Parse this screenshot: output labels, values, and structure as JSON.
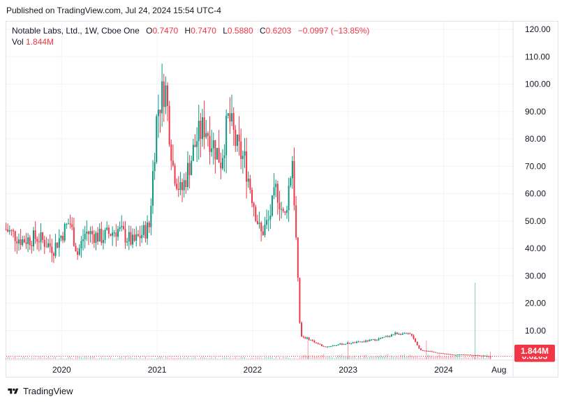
{
  "header": {
    "published": "Published on TradingView.com, Jul 24, 2024 15:54 UTC-4"
  },
  "legend": {
    "symbol": "Notable Labs, Ltd., 1W, Cboe One",
    "open_label": "O",
    "open": "0.7470",
    "high_label": "H",
    "high": "0.7470",
    "low_label": "L",
    "low": "0.5880",
    "close_label": "C",
    "close": "0.6203",
    "change": "−0.0997 (−13.85%)",
    "vol_label": "Vol",
    "vol": "1.844M"
  },
  "footer": {
    "brand": "TradingView"
  },
  "colors": {
    "up": "#089981",
    "down": "#f23645",
    "grid": "#f0f3fa",
    "text": "#131722"
  },
  "chart_data": {
    "type": "candlestick",
    "title": "Notable Labs, Ltd., 1W, Cboe One",
    "xlabel": "",
    "ylabel": "",
    "y_ticks": [
      "120.00",
      "110.00",
      "100.00",
      "90.00",
      "80.00",
      "70.00",
      "60.00",
      "50.00",
      "40.00",
      "30.00",
      "20.00",
      "10.00",
      "0.00"
    ],
    "ylim": [
      0,
      120
    ],
    "x_ticks": [
      "2020",
      "2021",
      "2022",
      "2023",
      "2024",
      "Aug"
    ],
    "last_price": "0.6203",
    "last_volume": "1.844M",
    "grid": true,
    "series": [
      {
        "name": "price",
        "points": [
          {
            "t": "2019-06",
            "c": 47
          },
          {
            "t": "2019-08",
            "c": 43
          },
          {
            "t": "2019-10",
            "c": 44
          },
          {
            "t": "2019-12",
            "c": 40
          },
          {
            "t": "2020-02",
            "c": 50
          },
          {
            "t": "2020-03",
            "c": 38
          },
          {
            "t": "2020-04",
            "c": 46
          },
          {
            "t": "2020-06",
            "c": 44
          },
          {
            "t": "2020-08",
            "c": 47
          },
          {
            "t": "2020-10",
            "c": 42
          },
          {
            "t": "2020-12",
            "c": 48
          },
          {
            "t": "2021-01",
            "c": 90
          },
          {
            "t": "2021-02",
            "c": 100
          },
          {
            "t": "2021-03",
            "c": 70
          },
          {
            "t": "2021-04",
            "c": 60
          },
          {
            "t": "2021-06",
            "c": 80
          },
          {
            "t": "2021-07",
            "c": 85
          },
          {
            "t": "2021-09",
            "c": 72
          },
          {
            "t": "2021-10",
            "c": 88
          },
          {
            "t": "2021-11",
            "c": 77
          },
          {
            "t": "2021-12",
            "c": 72
          },
          {
            "t": "2022-02",
            "c": 45
          },
          {
            "t": "2022-03",
            "c": 50
          },
          {
            "t": "2022-04",
            "c": 62
          },
          {
            "t": "2022-05",
            "c": 50
          },
          {
            "t": "2022-06",
            "c": 73
          },
          {
            "t": "2022-07",
            "c": 8
          },
          {
            "t": "2022-08",
            "c": 7
          },
          {
            "t": "2022-10",
            "c": 4
          },
          {
            "t": "2022-12",
            "c": 5
          },
          {
            "t": "2023-03",
            "c": 6
          },
          {
            "t": "2023-05",
            "c": 7
          },
          {
            "t": "2023-07",
            "c": 9
          },
          {
            "t": "2023-09",
            "c": 8.5
          },
          {
            "t": "2023-10",
            "c": 3
          },
          {
            "t": "2023-12",
            "c": 2
          },
          {
            "t": "2024-02",
            "c": 1.2
          },
          {
            "t": "2024-04",
            "c": 1.2
          },
          {
            "t": "2024-06",
            "c": 0.8
          },
          {
            "t": "2024-07",
            "c": 0.62
          }
        ]
      }
    ]
  }
}
